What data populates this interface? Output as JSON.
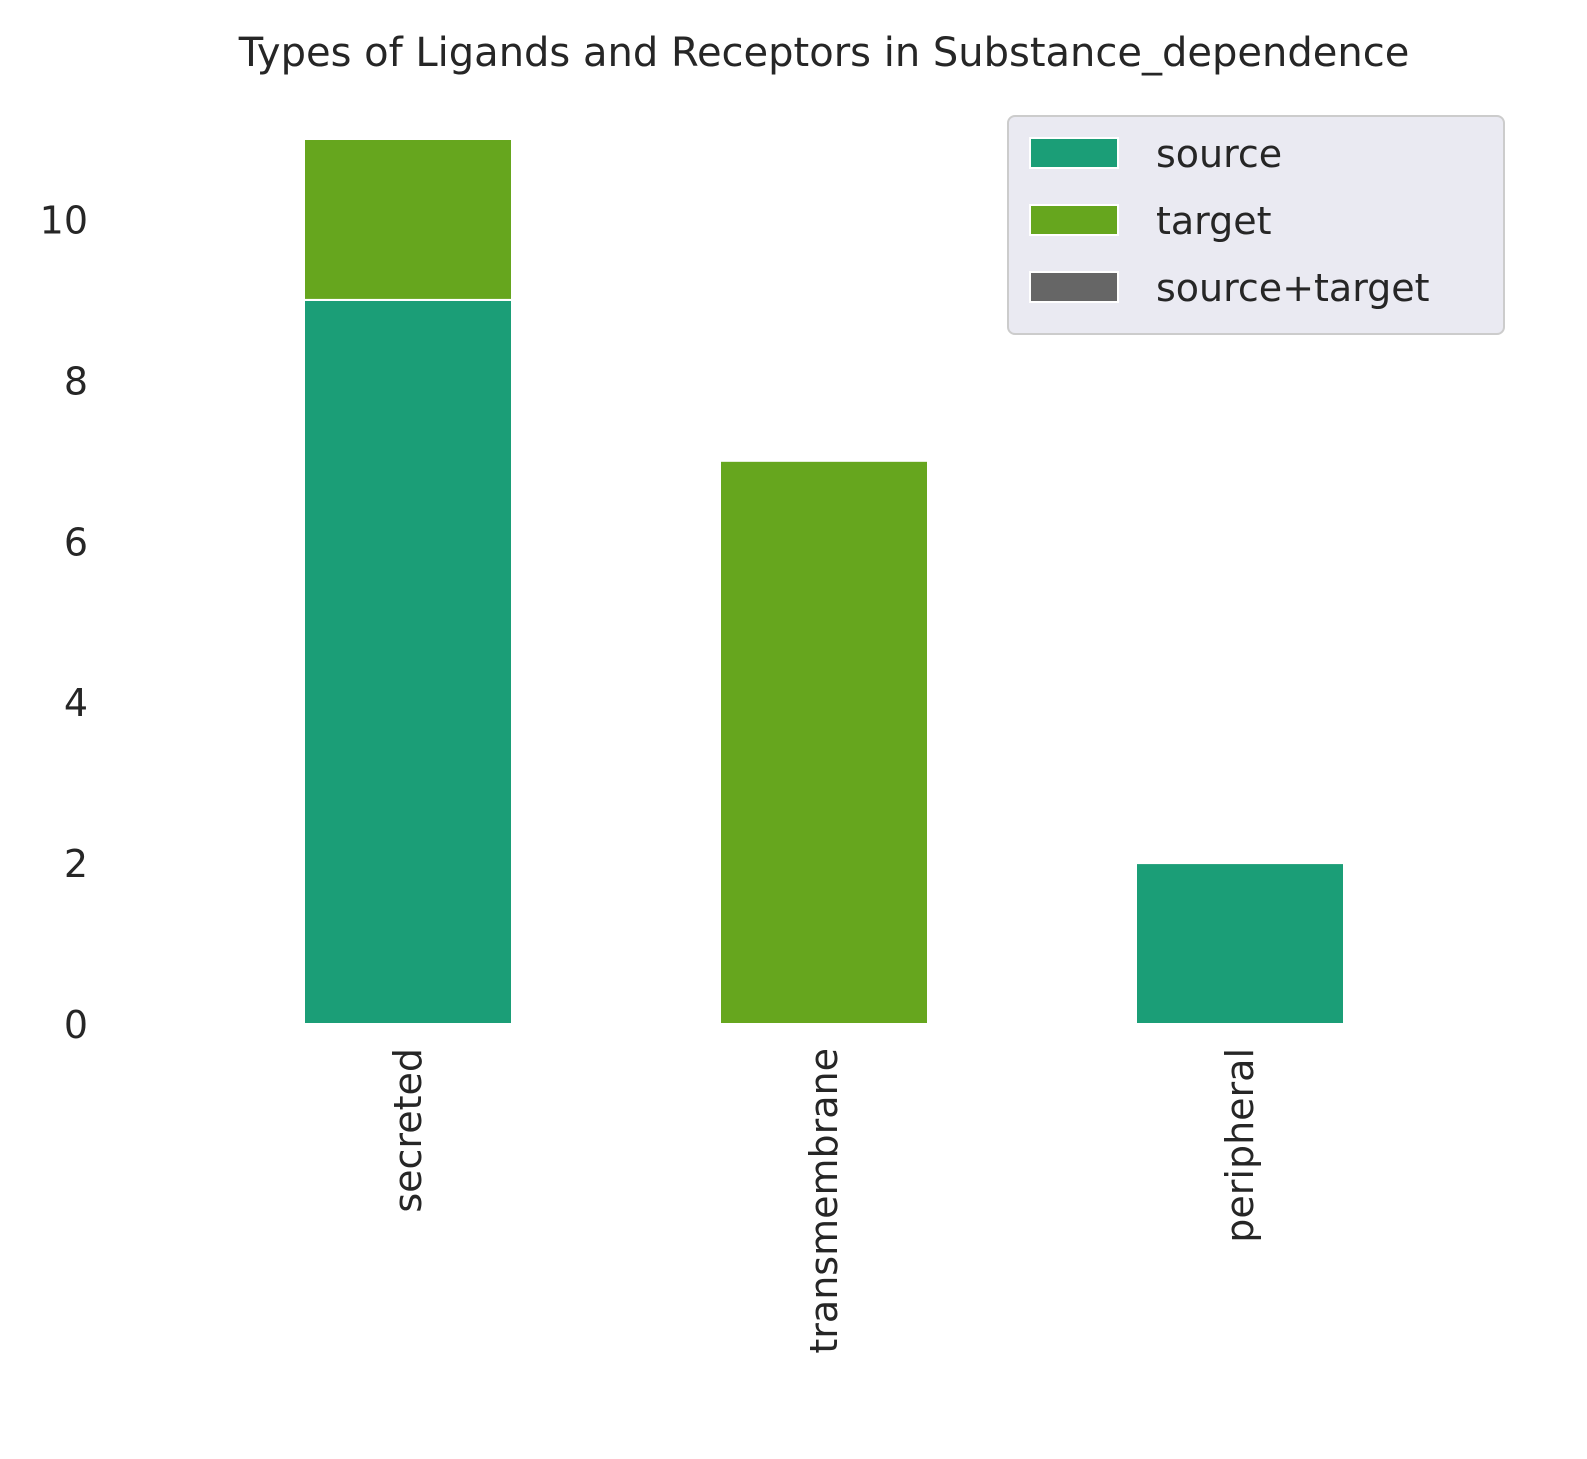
{
  "chart_data": {
    "type": "bar",
    "stacked": true,
    "title": "Types of Ligands and Receptors in Substance_dependence",
    "xlabel": "",
    "ylabel": "",
    "categories": [
      "secreted",
      "transmembrane",
      "peripheral"
    ],
    "series": [
      {
        "name": "source",
        "values": [
          9,
          0,
          2
        ],
        "color": "#1b9e77"
      },
      {
        "name": "target",
        "values": [
          2,
          7,
          0
        ],
        "color": "#66a61e"
      },
      {
        "name": "source+target",
        "values": [
          0,
          0,
          0
        ],
        "color": "#666666"
      }
    ],
    "ylim": [
      0,
      11
    ],
    "yticks": [
      0,
      2,
      4,
      6,
      8,
      10
    ],
    "grid": false,
    "legend_position": "top-right",
    "legend_background": "#eaeaf2"
  }
}
